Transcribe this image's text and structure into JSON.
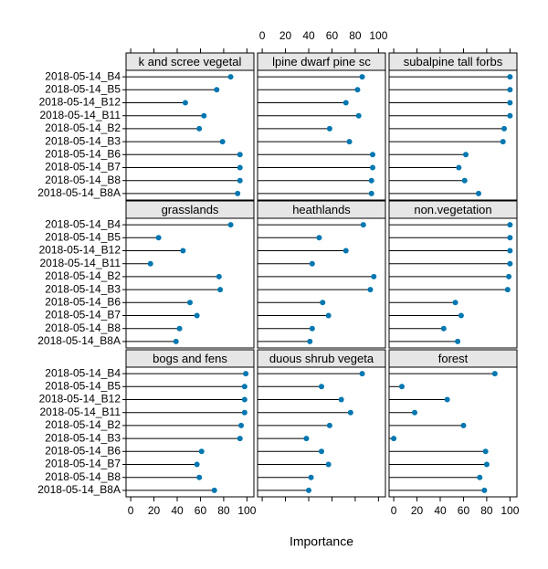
{
  "chart_data": {
    "type": "dotplot",
    "x_label": "Importance",
    "categories": [
      "2018-05-14_B4",
      "2018-05-14_B5",
      "2018-05-14_B12",
      "2018-05-14_B11",
      "2018-05-14_B2",
      "2018-05-14_B3",
      "2018-05-14_B6",
      "2018-05-14_B7",
      "2018-05-14_B8",
      "2018-05-14_B8A"
    ],
    "xlim": [
      -4,
      106
    ],
    "xticks": [
      0,
      20,
      40,
      60,
      80,
      100
    ],
    "color": "#0077b0",
    "panels": [
      {
        "title": "k and scree vegetal",
        "values": [
          86,
          74,
          47,
          63,
          59,
          79,
          94,
          94,
          94,
          92
        ]
      },
      {
        "title": "lpine dwarf pine sc",
        "values": [
          86,
          82,
          72,
          83,
          58,
          75,
          95,
          95,
          94,
          94
        ]
      },
      {
        "title": "subalpine tall forbs",
        "values": [
          100,
          100,
          100,
          100,
          95,
          94,
          62,
          56,
          61,
          73
        ]
      },
      {
        "title": "grasslands",
        "values": [
          86,
          24,
          45,
          17,
          76,
          77,
          51,
          57,
          42,
          39
        ]
      },
      {
        "title": "heathlands",
        "values": [
          87,
          49,
          72,
          43,
          96,
          93,
          52,
          57,
          43,
          41
        ]
      },
      {
        "title": "non.vegetation",
        "values": [
          100,
          100,
          100,
          100,
          99,
          98,
          53,
          58,
          43,
          55
        ]
      },
      {
        "title": "bogs and fens",
        "values": [
          99,
          98,
          98,
          98,
          95,
          94,
          61,
          57,
          59,
          72
        ]
      },
      {
        "title": "duous shrub vegeta",
        "values": [
          86,
          51,
          68,
          76,
          58,
          38,
          51,
          57,
          42,
          40
        ]
      },
      {
        "title": "forest",
        "values": [
          87,
          7,
          46,
          18,
          60,
          0,
          79,
          80,
          74,
          78
        ]
      }
    ]
  }
}
